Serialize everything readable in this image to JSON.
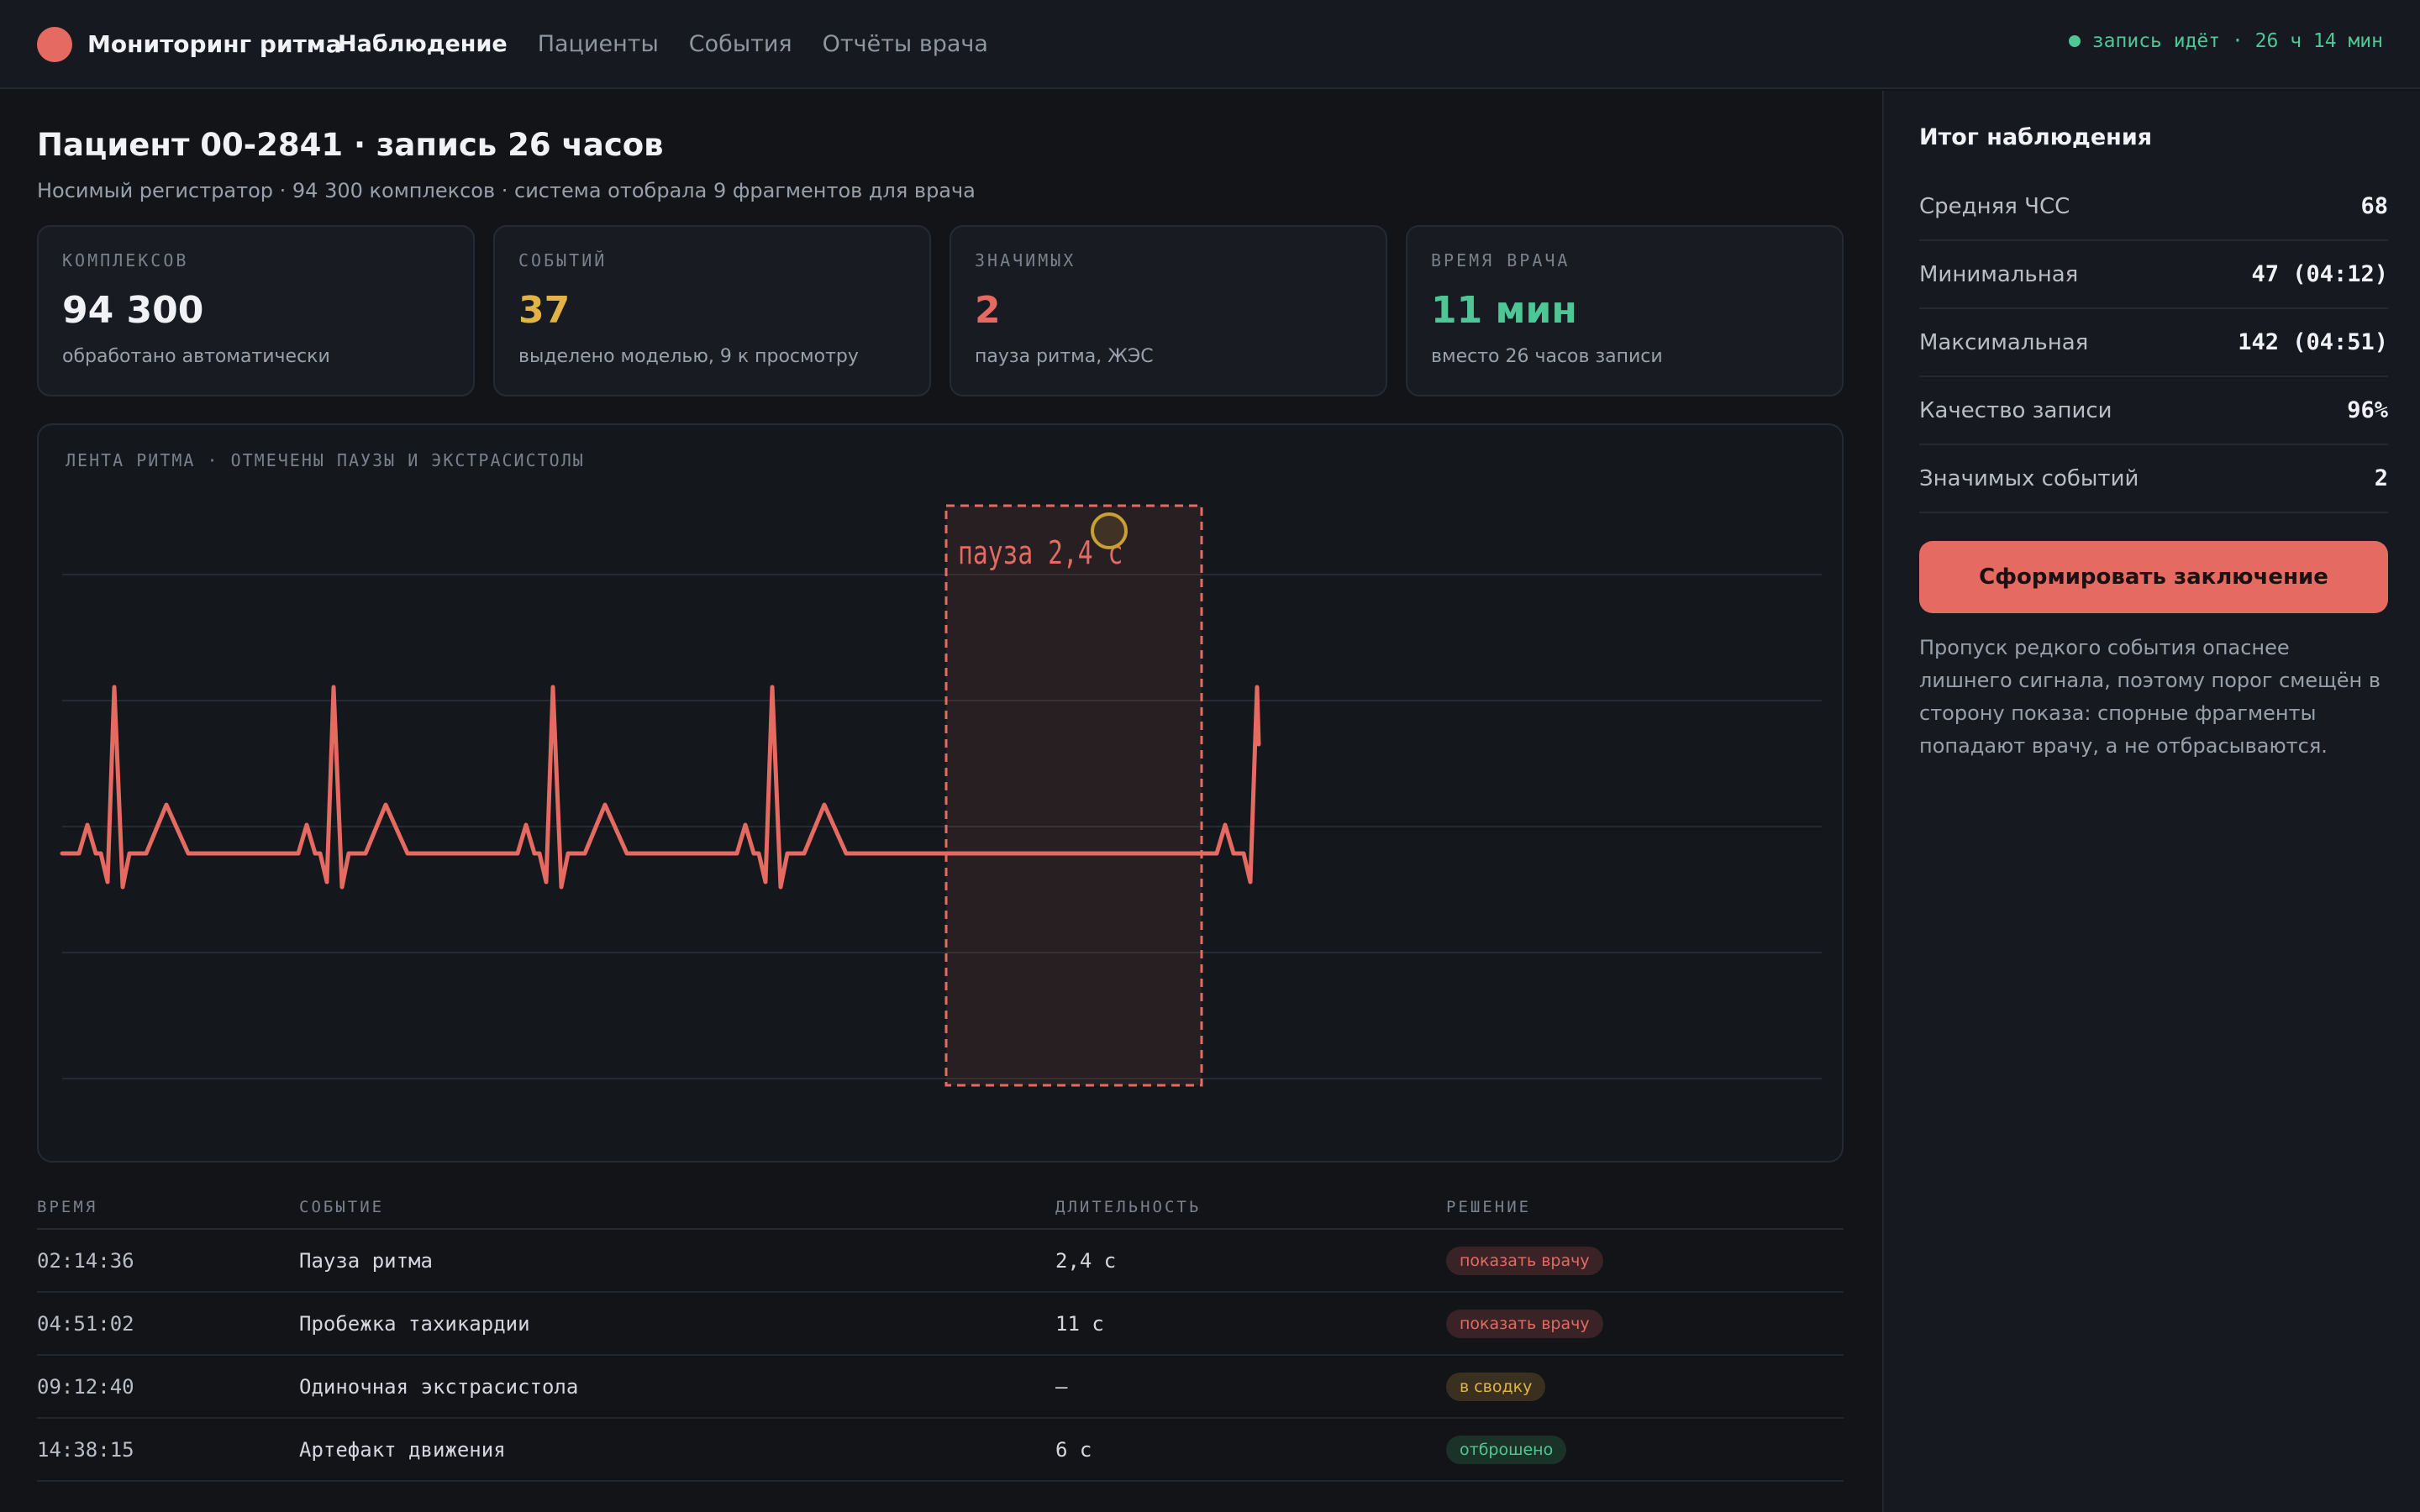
{
  "header": {
    "app_title": "Мониторинг ритма",
    "nav": [
      {
        "label": "Наблюдение",
        "active": true
      },
      {
        "label": "Пациенты",
        "active": false
      },
      {
        "label": "События",
        "active": false
      },
      {
        "label": "Отчёты врача",
        "active": false
      }
    ],
    "status": "запись идёт · 26 ч 14 мин"
  },
  "page": {
    "title": "Пациент 00-2841 · запись 26 часов",
    "subtitle": "Носимый регистратор · 94 300 комплексов · система отобрала 9 фрагментов для врача"
  },
  "stats": [
    {
      "label": "КОМПЛЕКСОВ",
      "value": "94 300",
      "note": "обработано автоматически",
      "color": "#f1f2f5"
    },
    {
      "label": "СОБЫТИЙ",
      "value": "37",
      "note": "выделено моделью, 9 к просмотру",
      "color": "#e2b443"
    },
    {
      "label": "ЗНАЧИМЫХ",
      "value": "2",
      "note": "пауза ритма, ЖЭС",
      "color": "#e46a62"
    },
    {
      "label": "ВРЕМЯ ВРАЧА",
      "value": "11 мин",
      "note": "вместо 26 часов записи",
      "color": "#4ec796"
    }
  ],
  "strip": {
    "label": "ЛЕНТА РИТМА · ОТМЕЧЕНЫ ПАУЗЫ И ЭКСТРАСИСТОЛЫ",
    "pause_label": "пауза 2,4 с",
    "trace_color": "#e46a62"
  },
  "events": {
    "columns": [
      "ВРЕМЯ",
      "СОБЫТИЕ",
      "ДЛИТЕЛЬНОСТЬ",
      "РЕШЕНИЕ"
    ],
    "rows": [
      {
        "time": "02:14:36",
        "event": "Пауза ритма",
        "duration": "2,4 с",
        "decision": "показать врачу",
        "kind": "show"
      },
      {
        "time": "04:51:02",
        "event": "Пробежка тахикардии",
        "duration": "11 с",
        "decision": "показать врачу",
        "kind": "show"
      },
      {
        "time": "09:12:40",
        "event": "Одиночная экстрасистола",
        "duration": "—",
        "decision": "в сводку",
        "kind": "sum"
      },
      {
        "time": "14:38:15",
        "event": "Артефакт движения",
        "duration": "6 с",
        "decision": "отброшено",
        "kind": "drop"
      }
    ]
  },
  "summary": {
    "title": "Итог наблюдения",
    "metrics": [
      {
        "label": "Средняя ЧСС",
        "value": "68"
      },
      {
        "label": "Минимальная",
        "value": "47 (04:12)"
      },
      {
        "label": "Максимальная",
        "value": "142 (04:51)"
      },
      {
        "label": "Качество записи",
        "value": "96%"
      },
      {
        "label": "Значимых событий",
        "value": "2"
      }
    ],
    "button": "Сформировать заключение",
    "note": "Пропуск редкого события опаснее лишнего сигнала, поэтому порог смещён в сторону показа: спорные фрагменты попадают врачу, а не отбрасываются."
  }
}
